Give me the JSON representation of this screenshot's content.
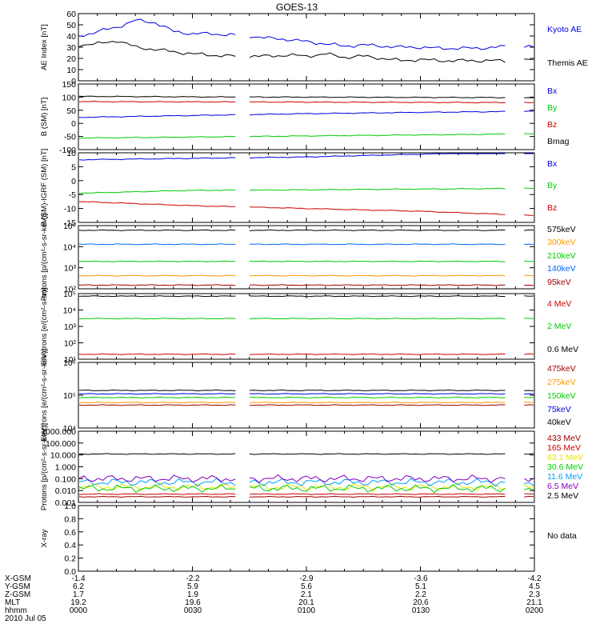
{
  "title": "GOES-13",
  "colors": {
    "black": "#000000",
    "blue": "#0000e0",
    "green": "#00cc00",
    "red": "#cc0000",
    "darkred": "#a00000",
    "orange": "#ff9900",
    "yellow": "#e6e600",
    "cyan": "#00a0ff",
    "purple": "#8000c0",
    "lightblue": "#0066ff"
  },
  "chart_data": [
    {
      "type": "line",
      "ylabel": "AE Index [nT]",
      "ylim": [
        0,
        60
      ],
      "yticks": [
        "0",
        "10",
        "20",
        "30",
        "40",
        "50",
        "60"
      ],
      "x": [
        "0000",
        "0005",
        "0010",
        "0015",
        "0020",
        "0025",
        "0030",
        "0035",
        "0040",
        "0045",
        "0050",
        "0055",
        "0100",
        "0105",
        "0110",
        "0115",
        "0120",
        "0125",
        "0130",
        "0135",
        "0140",
        "0145",
        "0150",
        "0155",
        "0200"
      ],
      "series": [
        {
          "name": "Kyoto AE",
          "color": "blue",
          "values": [
            40,
            44,
            48,
            54,
            52,
            44,
            42,
            42,
            41,
            40,
            38,
            37,
            35,
            33,
            31,
            32,
            31,
            30,
            30,
            29,
            29,
            29,
            30,
            31,
            30
          ]
        },
        {
          "name": "Themis AE",
          "color": "black",
          "values": [
            32,
            33,
            36,
            30,
            28,
            26,
            24,
            23,
            22,
            22,
            22,
            23,
            22,
            24,
            21,
            22,
            20,
            18,
            19,
            18,
            18,
            18,
            18,
            17,
            19
          ]
        }
      ]
    },
    {
      "type": "line",
      "ylabel": "B (SM) [nT]",
      "ylim": [
        -100,
        150
      ],
      "yticks": [
        "-100",
        "-50",
        "0",
        "50",
        "100",
        "150"
      ],
      "x": [
        "0000",
        "0030",
        "0100",
        "0130",
        "0200"
      ],
      "series": [
        {
          "name": "Bx",
          "color": "blue",
          "values": [
            23,
            30,
            37,
            42,
            46
          ]
        },
        {
          "name": "By",
          "color": "green",
          "values": [
            -56,
            -52,
            -48,
            -44,
            -40
          ]
        },
        {
          "name": "Bz",
          "color": "red",
          "values": [
            83,
            82,
            81,
            80,
            79
          ]
        },
        {
          "name": "Bmag",
          "color": "black",
          "values": [
            103,
            101,
            100,
            99,
            98
          ]
        }
      ]
    },
    {
      "type": "line",
      "ylabel": "B (SM)-IGRF (SM) [nT]",
      "ylim": [
        -15,
        10
      ],
      "yticks": [
        "-15",
        "-10",
        "-5",
        "0",
        "5",
        "10"
      ],
      "x": [
        "0000",
        "0030",
        "0100",
        "0130",
        "0200"
      ],
      "series": [
        {
          "name": "Bx",
          "color": "blue",
          "values": [
            7.5,
            8,
            8.5,
            9.5,
            10.5
          ]
        },
        {
          "name": "By",
          "color": "green",
          "values": [
            -4.5,
            -3.5,
            -3.3,
            -3,
            -2.8
          ]
        },
        {
          "name": "Bz",
          "color": "red",
          "values": [
            -7.5,
            -9,
            -10,
            -11,
            -12.5
          ]
        }
      ]
    },
    {
      "type": "line",
      "ylabel": "Protons [p/(cm²-s-sr-keV)]",
      "yscale": "log",
      "ylim": [
        100,
        100000
      ],
      "yticks": [
        "10²",
        "10³",
        "10⁴",
        "10⁵"
      ],
      "series": [
        {
          "name": "575keV",
          "color": "black",
          "values": [
            60000,
            60000,
            60000,
            60000,
            60000
          ]
        },
        {
          "name": "300keV",
          "color": "orange",
          "values": [
            420,
            420,
            420,
            420,
            420
          ]
        },
        {
          "name": "210keV",
          "color": "green",
          "values": [
            2000,
            2000,
            2000,
            2000,
            2000
          ]
        },
        {
          "name": "140keV",
          "color": "lightblue",
          "values": [
            13000,
            13000,
            13000,
            13000,
            13000
          ]
        },
        {
          "name": "95keV",
          "color": "darkred",
          "values": [
            150,
            150,
            150,
            150,
            150
          ]
        }
      ]
    },
    {
      "type": "line",
      "ylabel": "Electrons [e/(cm²-s-sr)]",
      "yscale": "log",
      "ylim": [
        10,
        100000
      ],
      "yticks": [
        "10¹",
        "10²",
        "10³",
        "10⁴",
        "10⁵"
      ],
      "series": [
        {
          "name": "4 MeV",
          "color": "red",
          "values": [
            20,
            20,
            20,
            20,
            20
          ]
        },
        {
          "name": "2 MeV",
          "color": "green",
          "values": [
            3000,
            3000,
            3000,
            3000,
            3000
          ]
        },
        {
          "name": "0.6 MeV",
          "color": "black",
          "values": [
            70000,
            70000,
            70000,
            70000,
            70000
          ]
        }
      ]
    },
    {
      "type": "line",
      "ylabel": "Electrons [e/(cm²-s-sr-keV)]",
      "yscale": "log",
      "ylim": [
        10000,
        1000000
      ],
      "yticks": [
        "10⁴",
        "10⁵",
        "10⁶"
      ],
      "series": [
        {
          "name": "475keV",
          "color": "darkred",
          "values": [
            50000,
            50000,
            50000,
            50000,
            50000
          ]
        },
        {
          "name": "275keV",
          "color": "orange",
          "values": [
            60000,
            60000,
            60000,
            60000,
            60000
          ]
        },
        {
          "name": "150keV",
          "color": "green",
          "values": [
            85000,
            85000,
            85000,
            85000,
            85000
          ]
        },
        {
          "name": "75keV",
          "color": "blue",
          "values": [
            110000,
            110000,
            110000,
            110000,
            110000
          ]
        },
        {
          "name": "40keV",
          "color": "black",
          "values": [
            140000,
            140000,
            140000,
            140000,
            140000
          ]
        }
      ]
    },
    {
      "type": "line",
      "ylabel": "Protons [p/(cm²-s-sr-keV)]",
      "yscale": "log",
      "ylim": [
        0.001,
        1000
      ],
      "yticks": [
        "0.001",
        "0.010",
        "0.100",
        "1.000",
        "10.000",
        "100.000",
        "1000.000"
      ],
      "series": [
        {
          "name": "433 MeV",
          "color": "darkred",
          "values": [
            0.003,
            0.003,
            0.003,
            0.003,
            0.003
          ]
        },
        {
          "name": "165 MeV",
          "color": "red",
          "values": [
            0.005,
            0.005,
            0.005,
            0.005,
            0.005
          ]
        },
        {
          "name": "63.1 MeV",
          "color": "yellow",
          "values": [
            0.02,
            0.02,
            0.02,
            0.02,
            0.02
          ]
        },
        {
          "name": "30.6 MeV",
          "color": "green",
          "values": [
            0.015,
            0.015,
            0.015,
            0.015,
            0.015
          ]
        },
        {
          "name": "11.6 MeV",
          "color": "cyan",
          "values": [
            0.05,
            0.05,
            0.05,
            0.05,
            0.05
          ]
        },
        {
          "name": "6.5 MeV",
          "color": "purple",
          "values": [
            0.1,
            0.1,
            0.1,
            0.1,
            0.1
          ]
        },
        {
          "name": "2.5 MeV",
          "color": "black",
          "values": [
            12,
            12,
            12,
            12,
            12
          ]
        }
      ]
    },
    {
      "type": "line",
      "ylabel": "X-ray",
      "ylim": [
        0,
        1
      ],
      "yticks": [
        "0.0",
        "0.2",
        "0.4",
        "0.6",
        "0.8",
        "1.0"
      ],
      "status": "No data",
      "series": []
    }
  ],
  "x_axis": {
    "row_labels": [
      "X-GSM",
      "Y-GSM",
      "Z-GSM",
      "MLT",
      "hhmm",
      "2010 Jul 05"
    ],
    "columns": [
      {
        "x_gsm": "-1.4",
        "y_gsm": "6.2",
        "z_gsm": "1.7",
        "mlt": "19.2",
        "hhmm": "0000"
      },
      {
        "x_gsm": "-2.2",
        "y_gsm": "5.9",
        "z_gsm": "1.9",
        "mlt": "19.6",
        "hhmm": "0030"
      },
      {
        "x_gsm": "-2.9",
        "y_gsm": "5.6",
        "z_gsm": "2.1",
        "mlt": "20.1",
        "hhmm": "0100"
      },
      {
        "x_gsm": "-3.6",
        "y_gsm": "5.1",
        "z_gsm": "2.2",
        "mlt": "20.6",
        "hhmm": "0130"
      },
      {
        "x_gsm": "-4.2",
        "y_gsm": "4.5",
        "z_gsm": "2.3",
        "mlt": "21.1",
        "hhmm": "0200"
      }
    ]
  }
}
